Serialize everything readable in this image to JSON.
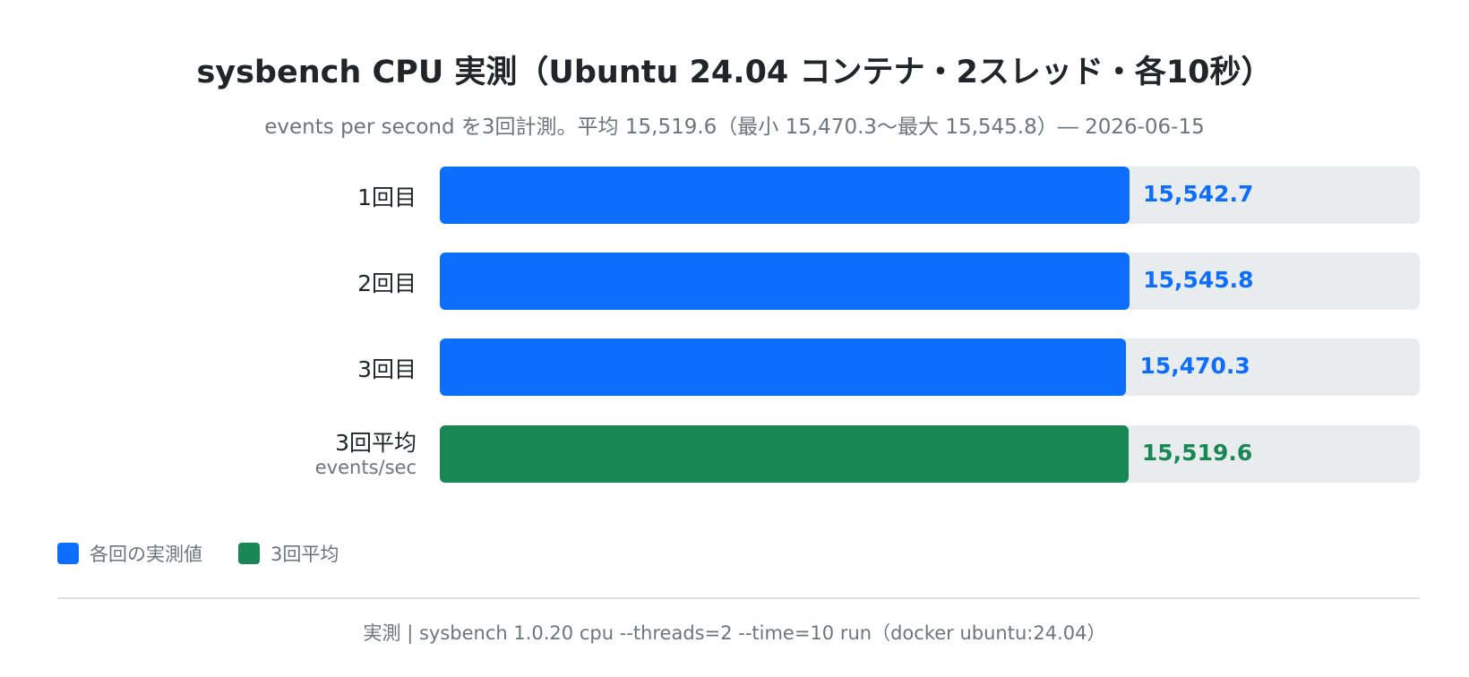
{
  "colors": {
    "run": "#0d6efd",
    "average": "#198754",
    "track": "#e9ecef"
  },
  "legend": [
    {
      "label": "各回の実測値",
      "color": "#0d6efd"
    },
    {
      "label": "3回平均",
      "color": "#198754"
    }
  ],
  "footer": "実測 | sysbench 1.0.20 cpu --threads=2 --time=10 run（docker ubuntu:24.04）",
  "chart_data": {
    "type": "bar",
    "orientation": "horizontal",
    "title": "sysbench CPU 実測（Ubuntu 24.04 コンテナ・2スレッド・各10秒）",
    "subtitle": "events per second を3回計測。平均 15,519.6（最小 15,470.3〜最大 15,545.8）― 2026-06-15",
    "categories": [
      "1回目",
      "2回目",
      "3回目",
      "3回平均"
    ],
    "category_sublabels": [
      "",
      "",
      "",
      "events/sec"
    ],
    "values": [
      15542.7,
      15545.8,
      15470.3,
      15519.6
    ],
    "value_labels": [
      "15,542.7",
      "15,545.8",
      "15,470.3",
      "15,519.6"
    ],
    "series_kind": [
      "run",
      "run",
      "run",
      "average"
    ],
    "xlim": [
      0,
      22081.7
    ],
    "grid": false,
    "legend_position": "bottom-left"
  }
}
